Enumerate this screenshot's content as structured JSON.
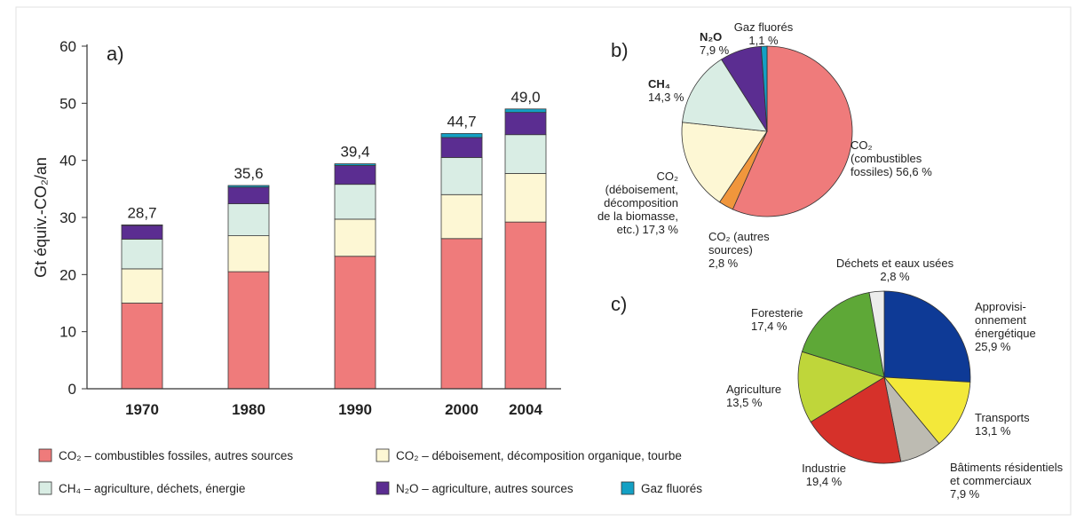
{
  "chart_data": [
    {
      "type": "bar",
      "stacked": true,
      "panel_label": "a)",
      "ylabel": "Gt équiv.-CO₂/an",
      "ylim": [
        0,
        60
      ],
      "yticks": [
        "0",
        "10",
        "20",
        "30",
        "40",
        "50",
        "60"
      ],
      "categories": [
        "1970",
        "1980",
        "1990",
        "2000",
        "2004"
      ],
      "totals": [
        "28,7",
        "35,6",
        "39,4",
        "44,7",
        "49,0"
      ],
      "series": [
        {
          "name": "CO₂ – combustibles fossiles, autres sources",
          "values": [
            15.0,
            20.5,
            23.2,
            26.3,
            29.2
          ]
        },
        {
          "name": "CO₂ – déboisement, décomposition organique, tourbe",
          "values": [
            6.0,
            6.3,
            6.5,
            7.7,
            8.5
          ]
        },
        {
          "name": "CH₄ – agriculture, déchets, énergie",
          "values": [
            5.2,
            5.6,
            6.1,
            6.5,
            6.8
          ]
        },
        {
          "name": "N₂O – agriculture, autres sources",
          "values": [
            2.4,
            2.9,
            3.3,
            3.5,
            3.9
          ]
        },
        {
          "name": "Gaz fluorés",
          "values": [
            0.1,
            0.3,
            0.3,
            0.7,
            0.6
          ]
        }
      ],
      "grid": false,
      "legend_placement": "bottom"
    },
    {
      "type": "pie",
      "panel_label": "b)",
      "slices": [
        {
          "value": 56.6,
          "label": [
            "CO₂",
            "(combustibles",
            "fossiles) 56,6 %"
          ]
        },
        {
          "value": 2.8,
          "label": [
            "CO₂ (autres",
            "sources)",
            "2,8 %"
          ]
        },
        {
          "value": 17.3,
          "label": [
            "CO₂",
            "(déboisement,",
            "décomposition",
            "de la biomasse,",
            "etc.) 17,3 %"
          ]
        },
        {
          "value": 14.3,
          "label": [
            "CH₄",
            "14,3 %"
          ]
        },
        {
          "value": 7.9,
          "label": [
            "N₂O",
            "7,9 %"
          ]
        },
        {
          "value": 1.1,
          "label": [
            "Gaz fluorés",
            "1,1 %"
          ]
        }
      ]
    },
    {
      "type": "pie",
      "panel_label": "c)",
      "slices": [
        {
          "value": 25.9,
          "label": [
            "Approvisi-",
            "onnement",
            "énergétique",
            "25,9 %"
          ]
        },
        {
          "value": 13.1,
          "label": [
            "Transports",
            "13,1 %"
          ]
        },
        {
          "value": 7.9,
          "label": [
            "Bâtiments résidentiels",
            "et commerciaux",
            "7,9 %"
          ]
        },
        {
          "value": 19.4,
          "label": [
            "Industrie",
            "19,4 %"
          ]
        },
        {
          "value": 13.5,
          "label": [
            "Agriculture",
            "13,5 %"
          ]
        },
        {
          "value": 17.4,
          "label": [
            "Foresterie",
            "17,4 %"
          ]
        },
        {
          "value": 2.8,
          "label": [
            "Déchets et eaux usées",
            "2,8 %"
          ]
        }
      ]
    }
  ],
  "colors": {
    "co2_fossil": "#ef7b7b",
    "co2_deforest": "#fdf7d4",
    "ch4": "#d9ede4",
    "n2o": "#5b2d91",
    "fgas": "#14a0c4",
    "co2_other": "#f0963c",
    "c_energy": "#0e3a96",
    "c_transport": "#f3e83a",
    "c_buildings": "#bdbbb2",
    "c_industry": "#d6312a",
    "c_agriculture": "#bfd63a",
    "c_forestry": "#5ea837",
    "c_waste": "#ececec"
  }
}
